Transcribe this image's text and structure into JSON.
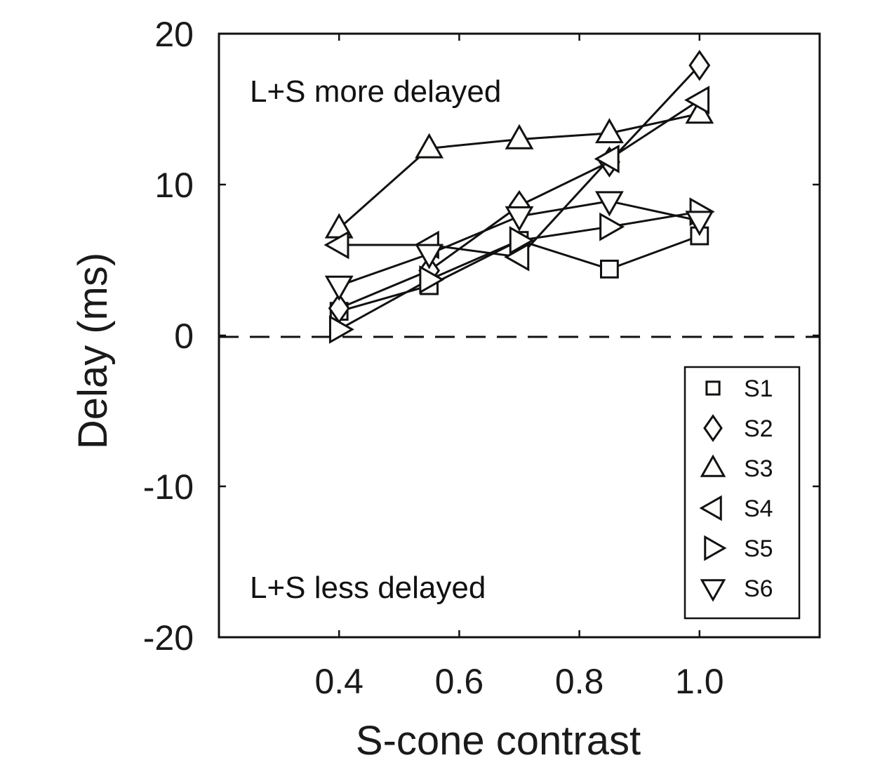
{
  "chart_data": {
    "type": "line",
    "title": "",
    "xlabel": "S-cone contrast",
    "ylabel": "Delay (ms)",
    "xlim": [
      0.2,
      1.2
    ],
    "ylim": [
      -20,
      20
    ],
    "xticks": [
      0.4,
      0.6,
      0.8,
      1.0
    ],
    "xtick_labels": [
      "0.4",
      "0.6",
      "0.8",
      "1.0"
    ],
    "yticks": [
      20,
      10,
      0,
      -10,
      -20
    ],
    "ytick_labels": [
      "20",
      "10",
      "0",
      "-10",
      "-20"
    ],
    "x": [
      0.4,
      0.55,
      0.7,
      0.85,
      1.0
    ],
    "reference_line": {
      "y": 0,
      "style": "dashed"
    },
    "annotations": [
      "L+S more delayed",
      "L+S less delayed"
    ],
    "legend_position": "bottom-right",
    "grid": false,
    "series": [
      {
        "name": "S1",
        "marker": "square",
        "values": [
          1.6,
          3.3,
          6.3,
          4.4,
          6.6
        ]
      },
      {
        "name": "S2",
        "marker": "diamond",
        "values": [
          1.8,
          4.3,
          8.6,
          11.5,
          17.9
        ]
      },
      {
        "name": "S3",
        "marker": "triangle-up",
        "values": [
          7.1,
          12.4,
          13.0,
          13.4,
          14.7
        ]
      },
      {
        "name": "S4",
        "marker": "triangle-left",
        "values": [
          6.0,
          6.0,
          5.2,
          11.7,
          15.6
        ]
      },
      {
        "name": "S5",
        "marker": "triangle-right",
        "values": [
          0.4,
          3.7,
          6.3,
          7.2,
          8.2
        ]
      },
      {
        "name": "S6",
        "marker": "triangle-down",
        "values": [
          3.3,
          5.4,
          7.9,
          8.9,
          7.6
        ]
      }
    ]
  }
}
